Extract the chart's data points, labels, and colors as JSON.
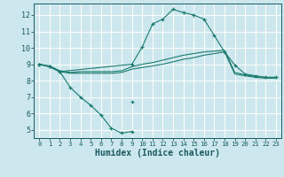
{
  "title": "",
  "xlabel": "Humidex (Indice chaleur)",
  "bg_color": "#cce8ee",
  "grid_color": "#ffffff",
  "line_color": "#1a7a6e",
  "xlim": [
    -0.5,
    23.5
  ],
  "ylim": [
    4.5,
    12.7
  ],
  "yticks": [
    5,
    6,
    7,
    8,
    9,
    10,
    11,
    12
  ],
  "xticks": [
    0,
    1,
    2,
    3,
    4,
    5,
    6,
    7,
    8,
    9,
    10,
    11,
    12,
    13,
    14,
    15,
    16,
    17,
    18,
    19,
    20,
    21,
    22,
    23
  ],
  "line1_x": [
    0,
    1,
    2,
    3,
    4,
    5,
    6,
    7,
    8,
    9,
    10,
    11,
    12,
    13,
    14,
    15,
    16,
    17,
    18,
    19,
    20,
    21,
    22,
    23
  ],
  "line1_y": [
    9.0,
    8.9,
    8.6,
    8.5,
    8.55,
    8.55,
    8.55,
    8.55,
    8.6,
    8.85,
    9.0,
    9.1,
    9.25,
    9.4,
    9.55,
    9.65,
    9.75,
    9.8,
    9.85,
    8.5,
    8.35,
    8.25,
    8.2,
    8.2
  ],
  "line2_x": [
    0,
    1,
    2,
    3,
    4,
    5,
    6,
    7,
    8,
    9,
    10,
    11,
    12,
    13,
    14,
    15,
    16,
    17,
    18,
    19,
    20,
    21,
    22,
    23
  ],
  "line2_y": [
    9.0,
    8.85,
    8.55,
    8.45,
    8.45,
    8.45,
    8.45,
    8.45,
    8.5,
    8.7,
    8.8,
    8.9,
    9.0,
    9.15,
    9.3,
    9.4,
    9.55,
    9.65,
    9.75,
    8.4,
    8.3,
    8.2,
    8.15,
    8.15
  ],
  "curve_x": [
    0,
    1,
    2,
    9,
    10,
    11,
    12,
    13,
    14,
    15,
    16,
    17,
    18,
    19,
    20,
    21,
    22,
    23
  ],
  "curve_y": [
    9.0,
    8.85,
    8.55,
    9.0,
    10.05,
    11.45,
    11.75,
    12.35,
    12.15,
    12.0,
    11.75,
    10.75,
    9.75,
    8.95,
    8.4,
    8.3,
    8.2,
    8.2
  ],
  "dip_x": [
    0,
    1,
    2,
    3,
    4,
    5,
    6,
    7,
    8,
    9
  ],
  "dip_y": [
    9.0,
    8.85,
    8.55,
    7.6,
    7.0,
    6.5,
    5.9,
    5.1,
    4.8,
    4.9
  ],
  "single_x": [
    9
  ],
  "single_y": [
    6.7
  ]
}
